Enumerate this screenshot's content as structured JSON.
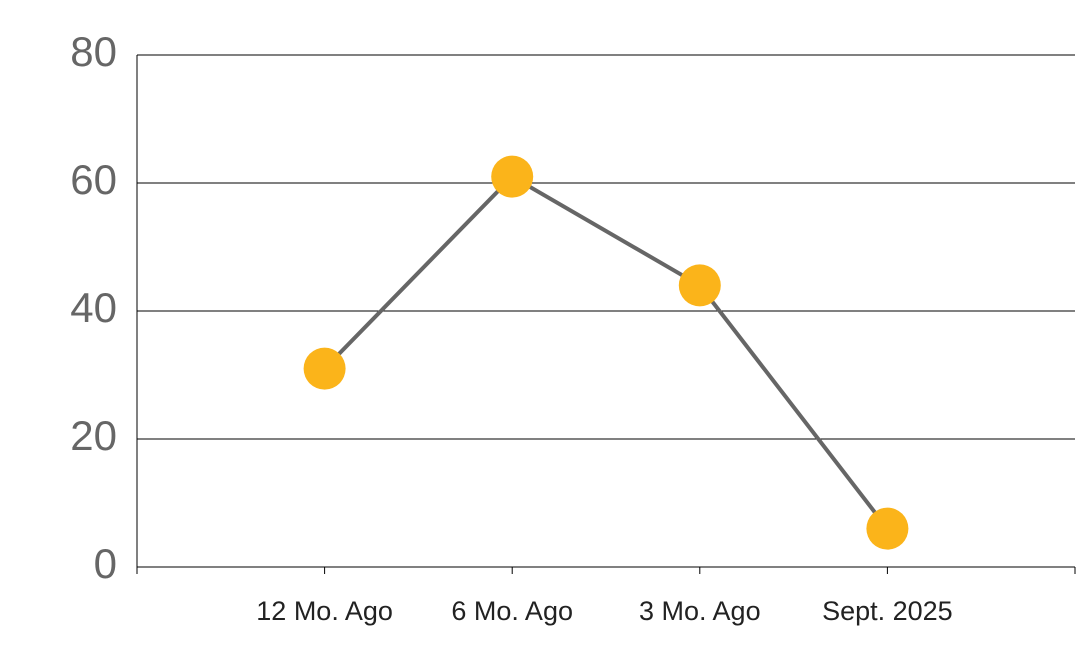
{
  "chart_data": {
    "type": "line",
    "categories": [
      null,
      "12 Mo. Ago",
      "6 Mo. Ago",
      "3 Mo. Ago",
      "Sept. 2025",
      null
    ],
    "series": [
      {
        "values": [
          null,
          31,
          61,
          44,
          6,
          null
        ],
        "color": "#666666",
        "marker_color": "#fbb41a"
      }
    ],
    "ylim": [
      0,
      80
    ],
    "yticks": [
      0,
      20,
      40,
      60,
      80
    ],
    "grid": true
  }
}
